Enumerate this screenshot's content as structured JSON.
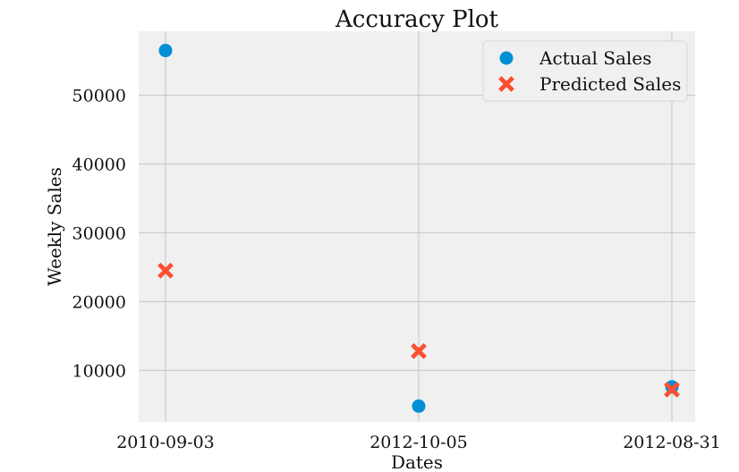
{
  "chart_data": {
    "type": "scatter",
    "title": "Accuracy Plot",
    "xlabel": "Dates",
    "ylabel": "Weekly Sales",
    "categories": [
      "2010-09-03",
      "2012-10-05",
      "2012-08-31"
    ],
    "series": [
      {
        "name": "Actual Sales",
        "marker": "circle",
        "color": "#008fd5",
        "values": [
          56500,
          4800,
          7600
        ]
      },
      {
        "name": "Predicted Sales",
        "marker": "x",
        "color": "#fc4f30",
        "values": [
          24500,
          12800,
          7200
        ]
      }
    ],
    "yticks": [
      10000,
      20000,
      30000,
      40000,
      50000
    ],
    "ylim": [
      2500,
      59300
    ],
    "grid": true,
    "legend_position": "top-right",
    "background": "#f0f0f0"
  }
}
